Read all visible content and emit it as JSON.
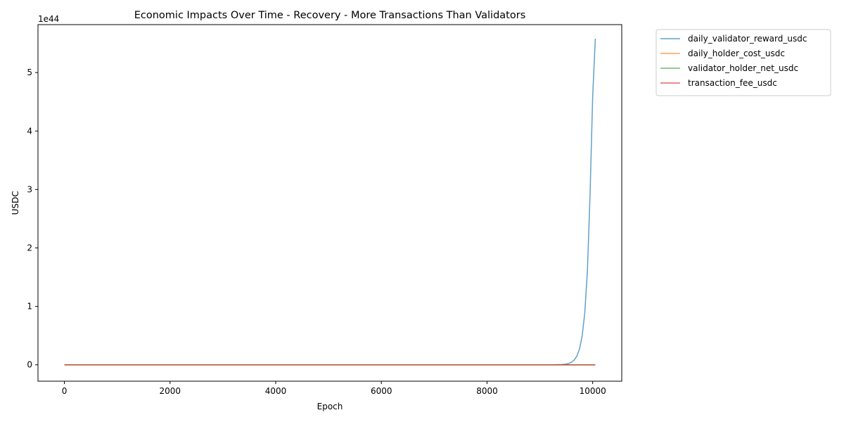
{
  "chart_data": {
    "type": "line",
    "title": "Economic Impacts Over Time - Recovery - More Transactions Than Validators",
    "xlabel": "Epoch",
    "ylabel": "USDC",
    "y_offset_label": "1e44",
    "y_scale_factor": 1e+44,
    "xlim": [
      -500,
      10550
    ],
    "ylim": [
      -0.28,
      5.82
    ],
    "x_ticks": [
      0,
      2000,
      4000,
      6000,
      8000,
      10000
    ],
    "y_ticks": [
      0,
      1,
      2,
      3,
      4,
      5
    ],
    "grid": false,
    "legend_position": "outside-top-right",
    "series": [
      {
        "name": "daily_validator_reward_usdc",
        "color": "#1f77b4",
        "x": [
          0,
          1000,
          2000,
          3000,
          4000,
          5000,
          6000,
          7000,
          8000,
          9000,
          9300,
          9400,
          9450,
          9500,
          9550,
          9600,
          9650,
          9700,
          9750,
          9800,
          9850,
          9900,
          9950,
          10000,
          10050
        ],
        "y": [
          0,
          0,
          0,
          0,
          0,
          0,
          0,
          0,
          0,
          4e-05,
          0.0013,
          0.0042,
          0.0077,
          0.0139,
          0.0252,
          0.0457,
          0.0827,
          0.1497,
          0.271,
          0.4903,
          0.8874,
          1.606,
          2.906,
          4.6,
          5.58
        ]
      },
      {
        "name": "daily_holder_cost_usdc",
        "color": "#ff7f0e",
        "x": [
          0,
          10050
        ],
        "y": [
          0,
          0
        ]
      },
      {
        "name": "validator_holder_net_usdc",
        "color": "#2ca02c",
        "x": [
          0,
          10050
        ],
        "y": [
          0,
          0
        ]
      },
      {
        "name": "transaction_fee_usdc",
        "color": "#d62728",
        "x": [
          0,
          10050
        ],
        "y": [
          0,
          0
        ]
      }
    ]
  }
}
